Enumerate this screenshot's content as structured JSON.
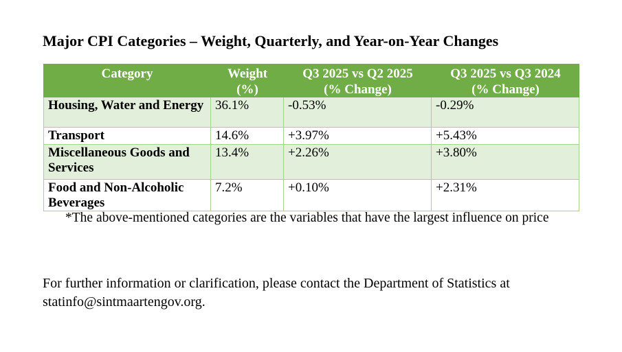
{
  "page": {
    "title": "Major CPI Categories – Weight, Quarterly, and Year-on-Year Changes",
    "footnote": "*The above-mentioned categories are the variables that have the largest influence on price",
    "contact": {
      "line1": "For further information or clarification, please contact the Department of Statistics at",
      "line2": "statinfo@sintmaartengov.org."
    }
  },
  "colors": {
    "header_bg": "#70AD47",
    "header_text": "#FFFFFF",
    "row_alt_bg": "#E2EFDA",
    "row_bg": "#FFFFFF",
    "table_border": "#A9D08E",
    "text": "#000000"
  },
  "table": {
    "headers": [
      {
        "line1": "Category",
        "line2": ""
      },
      {
        "line1": "Weight",
        "line2": "(%)"
      },
      {
        "line1": "Q3 2025 vs Q2 2025",
        "line2": "(% Change)"
      },
      {
        "line1": "Q3 2025 vs Q3 2024",
        "line2": "(% Change)"
      }
    ],
    "rows": [
      {
        "category": "Housing, Water and Energy",
        "weight": "36.1%",
        "q3_2025_vs_q2_2025": "-0.53%",
        "q3_2025_vs_q3_2024": "-0.29%"
      },
      {
        "category": "Transport",
        "weight": "14.6%",
        "q3_2025_vs_q2_2025": "+3.97%",
        "q3_2025_vs_q3_2024": "+5.43%"
      },
      {
        "category": "Miscellaneous Goods and Services",
        "weight": "13.4%",
        "q3_2025_vs_q2_2025": "+2.26%",
        "q3_2025_vs_q3_2024": "+3.80%"
      },
      {
        "category": "Food and Non-Alcoholic Beverages",
        "weight": "7.2%",
        "q3_2025_vs_q2_2025": "+0.10%",
        "q3_2025_vs_q3_2024": "+2.31%"
      }
    ]
  },
  "chart_data": {
    "type": "table",
    "title": "Major CPI Categories – Weight, Quarterly, and Year-on-Year Changes",
    "columns": [
      "Category",
      "Weight (%)",
      "Q3 2025 vs Q2 2025 (% Change)",
      "Q3 2025 vs Q3 2024 (% Change)"
    ],
    "rows": [
      [
        "Housing, Water and Energy",
        "36.1%",
        "-0.53%",
        "-0.29%"
      ],
      [
        "Transport",
        "14.6%",
        "+3.97%",
        "+5.43%"
      ],
      [
        "Miscellaneous Goods and Services",
        "13.4%",
        "+2.26%",
        "+3.80%"
      ],
      [
        "Food and Non-Alcoholic Beverages",
        "7.2%",
        "+0.10%",
        "+2.31%"
      ]
    ]
  }
}
